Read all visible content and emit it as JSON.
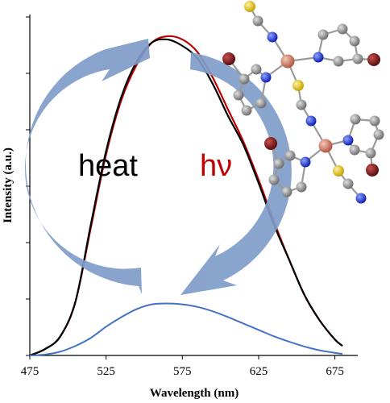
{
  "chart_data": {
    "type": "line",
    "title": "",
    "xlabel": "Wavelength (nm)",
    "ylabel": "Intensity (a.u.)",
    "xlim": [
      475,
      690
    ],
    "ylim": [
      0,
      1.05
    ],
    "xticks": [
      "475",
      "525",
      "575",
      "625",
      "675"
    ],
    "y_tick_labels_shown": false,
    "grid": false,
    "legend": "none",
    "annotations": [
      {
        "text": "heat",
        "color": "#000000"
      },
      {
        "text": "hν",
        "color": "#c00000"
      }
    ],
    "series": [
      {
        "color": "#c00000",
        "x": [
          475,
          485,
          495,
          505,
          515,
          525,
          535,
          545,
          555,
          565,
          575,
          585,
          595,
          605,
          615,
          625,
          635,
          645,
          655,
          665,
          675,
          680
        ],
        "y": [
          0.0,
          0.02,
          0.06,
          0.17,
          0.4,
          0.63,
          0.8,
          0.91,
          0.98,
          1.0,
          0.99,
          0.95,
          0.87,
          0.77,
          0.67,
          0.55,
          0.42,
          0.3,
          0.19,
          0.11,
          0.05,
          0.03
        ]
      },
      {
        "color": "#000000",
        "x": [
          475,
          485,
          495,
          505,
          515,
          525,
          535,
          545,
          555,
          565,
          575,
          585,
          595,
          605,
          615,
          625,
          635,
          645,
          655,
          665,
          675,
          680
        ],
        "y": [
          0.0,
          0.02,
          0.06,
          0.17,
          0.41,
          0.64,
          0.81,
          0.92,
          0.98,
          0.99,
          0.97,
          0.93,
          0.85,
          0.75,
          0.66,
          0.54,
          0.41,
          0.3,
          0.19,
          0.11,
          0.05,
          0.03
        ]
      },
      {
        "color": "#4472c4",
        "x": [
          475,
          485,
          495,
          505,
          515,
          525,
          535,
          545,
          555,
          565,
          575,
          585,
          595,
          605,
          615,
          625,
          635,
          645,
          655,
          665,
          675,
          680
        ],
        "y": [
          0.0,
          0.003,
          0.012,
          0.03,
          0.055,
          0.09,
          0.12,
          0.145,
          0.16,
          0.163,
          0.16,
          0.152,
          0.138,
          0.12,
          0.1,
          0.08,
          0.06,
          0.043,
          0.028,
          0.016,
          0.008,
          0.005
        ]
      }
    ]
  },
  "colors": {
    "arrow": "#7f9cc9",
    "molecule_carbon": "#8c8c8c",
    "molecule_nitrogen": "#2233cc",
    "molecule_sulfur": "#e8d23a",
    "molecule_metal": "#d9826c",
    "molecule_bromine": "#8b1a1a"
  }
}
